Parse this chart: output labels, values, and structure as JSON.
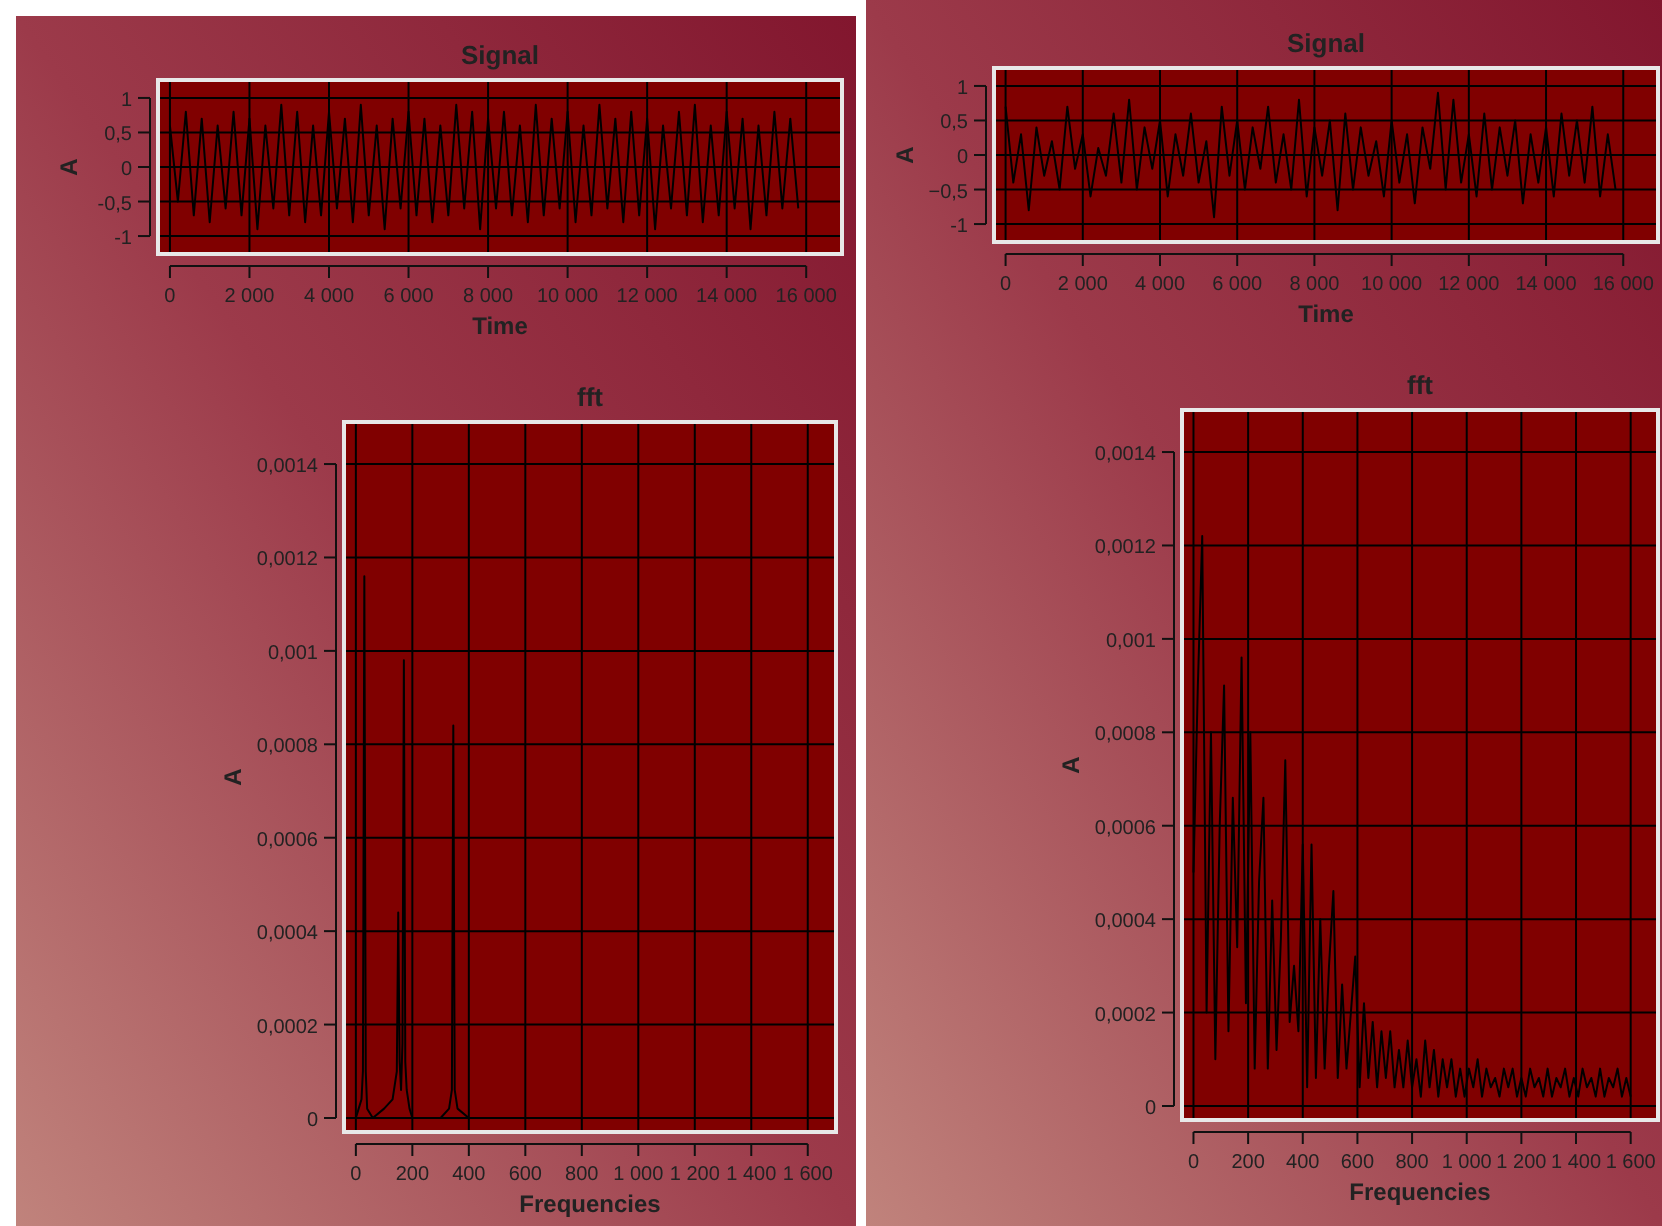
{
  "chart_data": [
    {
      "type": "line",
      "title": "Signal",
      "xlabel": "Time",
      "ylabel": "A",
      "grid": true,
      "xlim": [
        -300,
        16900
      ],
      "ylim": [
        -1.26,
        1.26
      ],
      "xticks": [
        0,
        {
          "value": 2000,
          "label": "2 000"
        },
        {
          "value": 4000,
          "label": "4 000"
        },
        {
          "value": 6000,
          "label": "6 000"
        },
        {
          "value": 8000,
          "label": "8 000"
        },
        {
          "value": 10000,
          "label": "10 000"
        },
        {
          "value": 12000,
          "label": "12 000"
        },
        {
          "value": 14000,
          "label": "14 000"
        },
        {
          "value": 16000,
          "label": "16 000"
        }
      ],
      "yticks": [
        -1,
        {
          "value": -0.5,
          "label": "-0,5"
        },
        0,
        {
          "value": 0.5,
          "label": "0,5"
        },
        1
      ],
      "series": [
        {
          "color": "#000000",
          "x": [
            0,
            200,
            400,
            600,
            800,
            1000,
            1200,
            1400,
            1600,
            1800,
            2000,
            2200,
            2400,
            2600,
            2800,
            3000,
            3200,
            3400,
            3600,
            3800,
            4000,
            4200,
            4400,
            4600,
            4800,
            5000,
            5200,
            5400,
            5600,
            5800,
            6000,
            6200,
            6400,
            6600,
            6800,
            7000,
            7200,
            7400,
            7600,
            7800,
            8000,
            8200,
            8400,
            8600,
            8800,
            9000,
            9200,
            9400,
            9600,
            9800,
            10000,
            10200,
            10400,
            10600,
            10800,
            11000,
            11200,
            11400,
            11600,
            11800,
            12000,
            12200,
            12400,
            12600,
            12800,
            13000,
            13200,
            13400,
            13600,
            13800,
            14000,
            14200,
            14400,
            14600,
            14800,
            15000,
            15200,
            15400,
            15600,
            15800
          ],
          "values": [
            0.6,
            -0.5,
            0.8,
            -0.7,
            0.7,
            -0.8,
            0.6,
            -0.6,
            0.8,
            -0.7,
            0.7,
            -0.9,
            0.6,
            -0.6,
            0.9,
            -0.7,
            0.8,
            -0.8,
            0.6,
            -0.7,
            0.8,
            -0.6,
            0.7,
            -0.8,
            0.9,
            -0.7,
            0.6,
            -0.9,
            0.7,
            -0.6,
            0.8,
            -0.7,
            0.7,
            -0.8,
            0.6,
            -0.7,
            0.9,
            -0.6,
            0.8,
            -0.9,
            0.7,
            -0.6,
            0.8,
            -0.7,
            0.6,
            -0.8,
            0.9,
            -0.7,
            0.7,
            -0.6,
            0.8,
            -0.8,
            0.6,
            -0.7,
            0.9,
            -0.6,
            0.7,
            -0.8,
            0.8,
            -0.7,
            0.7,
            -0.9,
            0.6,
            -0.6,
            0.8,
            -0.7,
            0.9,
            -0.8,
            0.6,
            -0.7,
            0.8,
            -0.6,
            0.7,
            -0.9,
            0.6,
            -0.7,
            0.8,
            -0.6,
            0.7,
            -0.6
          ]
        }
      ]
    },
    {
      "type": "line",
      "title": "fft",
      "xlabel": "Frequencies",
      "ylabel": "A",
      "grid": true,
      "xlim": [
        -42,
        1700
      ],
      "ylim": [
        -3e-05,
        0.00149
      ],
      "xticks": [
        0,
        200,
        400,
        600,
        800,
        {
          "value": 1000,
          "label": "1 000"
        },
        {
          "value": 1200,
          "label": "1 200"
        },
        {
          "value": 1400,
          "label": "1 400"
        },
        {
          "value": 1600,
          "label": "1 600"
        }
      ],
      "yticks": [
        0,
        {
          "value": 0.0002,
          "label": "0,0002"
        },
        {
          "value": 0.0004,
          "label": "0,0004"
        },
        {
          "value": 0.0006,
          "label": "0,0006"
        },
        {
          "value": 0.0008,
          "label": "0,0008"
        },
        {
          "value": 0.001,
          "label": "0,001"
        },
        {
          "value": 0.0012,
          "label": "0,0012"
        },
        {
          "value": 0.0014,
          "label": "0,0014"
        }
      ],
      "series": [
        {
          "color": "#000000",
          "x": [
            0,
            10,
            20,
            25,
            30,
            35,
            40,
            60,
            100,
            130,
            145,
            150,
            155,
            160,
            165,
            170,
            175,
            180,
            190,
            200,
            250,
            300,
            330,
            340,
            345,
            350,
            360,
            400
          ],
          "values": [
            0,
            2e-05,
            4e-05,
            0.0001,
            0.00116,
            0.0001,
            2e-05,
            0,
            2e-05,
            4e-05,
            0.0001,
            0.00044,
            0.00012,
            6e-05,
            0.00016,
            0.00098,
            0.00012,
            6e-05,
            2e-05,
            0,
            0,
            0,
            2e-05,
            6e-05,
            0.00084,
            6e-05,
            2e-05,
            0
          ]
        }
      ]
    },
    {
      "type": "line",
      "title": "Signal",
      "xlabel": "Time",
      "ylabel": "A",
      "grid": true,
      "xlim": [
        -300,
        16900
      ],
      "ylim": [
        -1.26,
        1.26
      ],
      "xticks": [
        0,
        {
          "value": 2000,
          "label": "2 000"
        },
        {
          "value": 4000,
          "label": "4 000"
        },
        {
          "value": 6000,
          "label": "6 000"
        },
        {
          "value": 8000,
          "label": "8 000"
        },
        {
          "value": 10000,
          "label": "10 000"
        },
        {
          "value": 12000,
          "label": "12 000"
        },
        {
          "value": 14000,
          "label": "14 000"
        },
        {
          "value": 16000,
          "label": "16 000"
        }
      ],
      "yticks": [
        -1,
        {
          "value": -0.5,
          "label": "−0,5"
        },
        0,
        {
          "value": 0.5,
          "label": "0,5"
        },
        1
      ],
      "series": [
        {
          "color": "#000000",
          "x": [
            0,
            200,
            400,
            600,
            800,
            1000,
            1200,
            1400,
            1600,
            1800,
            2000,
            2200,
            2400,
            2600,
            2800,
            3000,
            3200,
            3400,
            3600,
            3800,
            4000,
            4200,
            4400,
            4600,
            4800,
            5000,
            5200,
            5400,
            5600,
            5800,
            6000,
            6200,
            6400,
            6600,
            6800,
            7000,
            7200,
            7400,
            7600,
            7800,
            8000,
            8200,
            8400,
            8600,
            8800,
            9000,
            9200,
            9400,
            9600,
            9800,
            10000,
            10200,
            10400,
            10600,
            10800,
            11000,
            11200,
            11400,
            11600,
            11800,
            12000,
            12200,
            12400,
            12600,
            12800,
            13000,
            13200,
            13400,
            13600,
            13800,
            14000,
            14200,
            14400,
            14600,
            14800,
            15000,
            15200,
            15400,
            15600,
            15800
          ],
          "values": [
            0.7,
            -0.4,
            0.3,
            -0.8,
            0.4,
            -0.3,
            0.2,
            -0.5,
            0.7,
            -0.2,
            0.3,
            -0.6,
            0.1,
            -0.3,
            0.6,
            -0.4,
            0.8,
            -0.5,
            0.4,
            -0.2,
            0.5,
            -0.6,
            0.3,
            -0.3,
            0.6,
            -0.4,
            0.2,
            -0.9,
            0.7,
            -0.3,
            0.5,
            -0.5,
            0.4,
            -0.2,
            0.7,
            -0.4,
            0.3,
            -0.5,
            0.8,
            -0.6,
            0.4,
            -0.3,
            0.5,
            -0.8,
            0.6,
            -0.5,
            0.4,
            -0.3,
            0.2,
            -0.6,
            0.5,
            -0.4,
            0.3,
            -0.7,
            0.4,
            -0.2,
            0.9,
            -0.5,
            0.8,
            -0.4,
            0.3,
            -0.6,
            0.6,
            -0.5,
            0.4,
            -0.3,
            0.5,
            -0.7,
            0.3,
            -0.4,
            0.4,
            -0.6,
            0.6,
            -0.3,
            0.5,
            -0.4,
            0.7,
            -0.6,
            0.3,
            -0.5
          ]
        }
      ]
    },
    {
      "type": "line",
      "title": "fft",
      "xlabel": "Frequencies",
      "ylabel": "A",
      "grid": true,
      "xlim": [
        -42,
        1700
      ],
      "ylim": [
        -3e-05,
        0.00149
      ],
      "xticks": [
        0,
        200,
        400,
        600,
        800,
        {
          "value": 1000,
          "label": "1 000"
        },
        {
          "value": 1200,
          "label": "1 200"
        },
        {
          "value": 1400,
          "label": "1 400"
        },
        {
          "value": 1600,
          "label": "1 600"
        }
      ],
      "yticks": [
        0,
        {
          "value": 0.0002,
          "label": "0,0002"
        },
        {
          "value": 0.0004,
          "label": "0,0004"
        },
        {
          "value": 0.0006,
          "label": "0,0006"
        },
        {
          "value": 0.0008,
          "label": "0,0008"
        },
        {
          "value": 0.001,
          "label": "0,001"
        },
        {
          "value": 0.0012,
          "label": "0,0012"
        },
        {
          "value": 0.0014,
          "label": "0,0014"
        }
      ],
      "series": [
        {
          "color": "#000000",
          "x": [
            0,
            16,
            32,
            48,
            64,
            80,
            96,
            112,
            128,
            144,
            160,
            176,
            192,
            208,
            224,
            240,
            256,
            272,
            288,
            304,
            320,
            336,
            352,
            368,
            384,
            400,
            416,
            432,
            448,
            464,
            480,
            496,
            512,
            528,
            544,
            560,
            576,
            592,
            608,
            624,
            640,
            656,
            672,
            688,
            704,
            720,
            736,
            752,
            768,
            784,
            800,
            816,
            832,
            848,
            864,
            880,
            896,
            912,
            928,
            944,
            960,
            976,
            992,
            1008,
            1024,
            1040,
            1056,
            1072,
            1088,
            1104,
            1120,
            1136,
            1152,
            1168,
            1184,
            1200,
            1216,
            1232,
            1248,
            1264,
            1280,
            1296,
            1312,
            1328,
            1344,
            1360,
            1376,
            1392,
            1408,
            1424,
            1440,
            1456,
            1472,
            1488,
            1504,
            1520,
            1536,
            1552,
            1568,
            1584,
            1600
          ],
          "values": [
            0.0005,
            0.0009,
            0.00122,
            0.0002,
            0.0008,
            0.0001,
            0.0006,
            0.0009,
            0.00016,
            0.00066,
            0.00034,
            0.00096,
            0.00022,
            0.0008,
            8e-05,
            0.00048,
            0.00066,
            8e-05,
            0.00044,
            0.00012,
            0.00036,
            0.00074,
            0.00018,
            0.0003,
            0.00016,
            0.00056,
            4e-05,
            0.00056,
            6e-05,
            0.0004,
            8e-05,
            0.0003,
            0.00046,
            6e-05,
            0.00026,
            8e-05,
            0.0002,
            0.00032,
            4e-05,
            0.00022,
            6e-05,
            0.00018,
            4e-05,
            0.00016,
            6e-05,
            0.00016,
            4e-05,
            0.00012,
            4e-05,
            0.00014,
            4e-05,
            0.0001,
            2e-05,
            0.00014,
            4e-05,
            0.00012,
            2e-05,
            0.0001,
            4e-05,
            0.0001,
            2e-05,
            8e-05,
            2e-05,
            8e-05,
            4e-05,
            0.0001,
            2e-05,
            8e-05,
            4e-05,
            6e-05,
            2e-05,
            8e-05,
            4e-05,
            8e-05,
            2e-05,
            6e-05,
            2e-05,
            8e-05,
            4e-05,
            6e-05,
            2e-05,
            8e-05,
            2e-05,
            6e-05,
            4e-05,
            8e-05,
            2e-05,
            6e-05,
            2e-05,
            8e-05,
            4e-05,
            6e-05,
            2e-05,
            8e-05,
            2e-05,
            6e-05,
            4e-05,
            8e-05,
            2e-05,
            6e-05,
            2e-05
          ]
        }
      ]
    }
  ]
}
